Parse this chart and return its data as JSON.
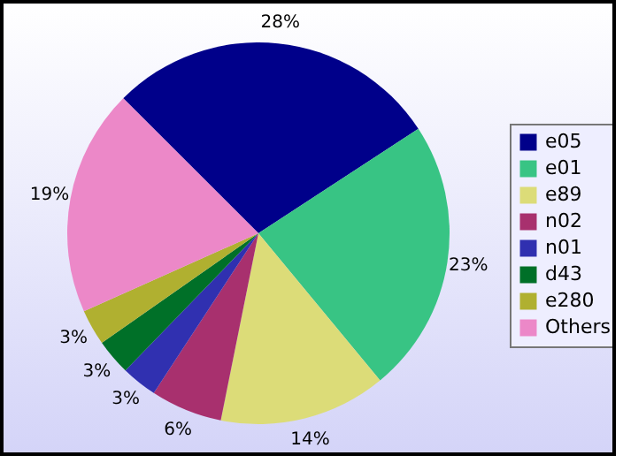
{
  "chart_data": {
    "type": "pie",
    "categories": [
      "e05",
      "e01",
      "e89",
      "n02",
      "n01",
      "d43",
      "e280",
      "Others"
    ],
    "values": [
      28,
      23,
      14,
      6,
      3,
      3,
      3,
      19
    ],
    "value_labels": [
      "28%",
      "23%",
      "14%",
      "6%",
      "3%",
      "3%",
      "3%",
      "19%"
    ],
    "colors": [
      "#00008a",
      "#38c484",
      "#dcdc78",
      "#a8306e",
      "#3030b0",
      "#007028",
      "#b0b030",
      "#ec88c8"
    ],
    "legend": "right"
  }
}
